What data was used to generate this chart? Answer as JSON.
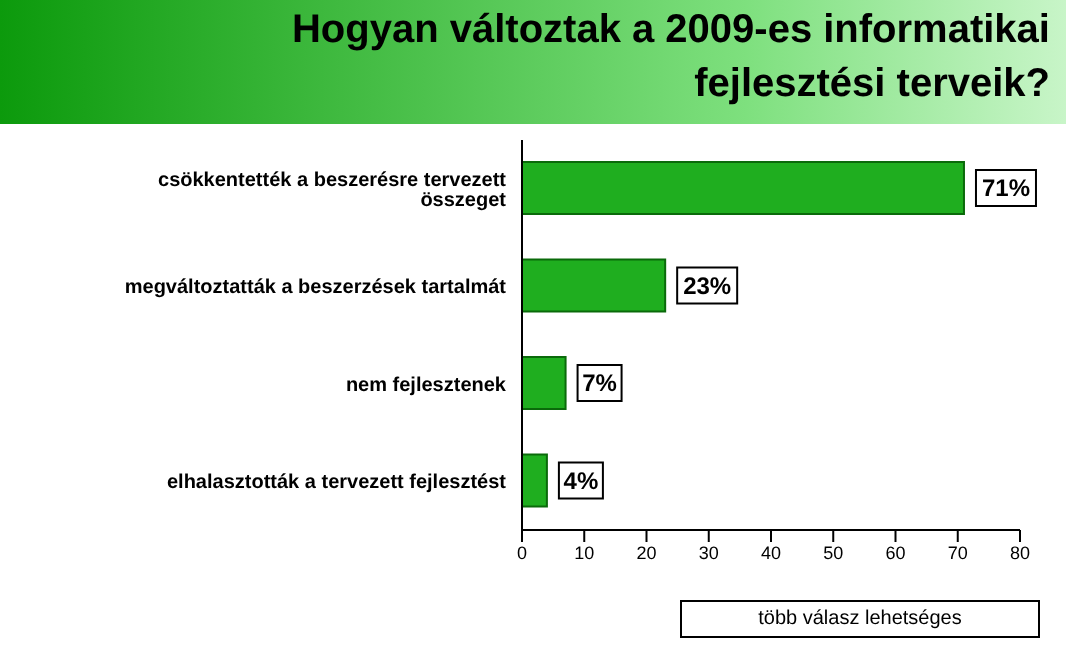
{
  "chart_data": {
    "type": "bar",
    "orientation": "horizontal",
    "title": "Hogyan változtak a 2009-es informatikai fejlesztési terveik?",
    "categories": [
      "csökkentették a beszerésre tervezett összeget",
      "megváltoztatták a beszerzések tartalmát",
      "nem fejlesztenek",
      "elhalasztották a tervezett fejlesztést"
    ],
    "values": [
      71,
      23,
      7,
      4
    ],
    "value_labels": [
      "71%",
      "23%",
      "7%",
      "4%"
    ],
    "color": "#1fae1f",
    "xlim": [
      0,
      80
    ],
    "xticks": [
      0,
      10,
      20,
      30,
      40,
      50,
      60,
      70,
      80
    ],
    "annotations": [
      "több válasz lehetséges"
    ]
  }
}
